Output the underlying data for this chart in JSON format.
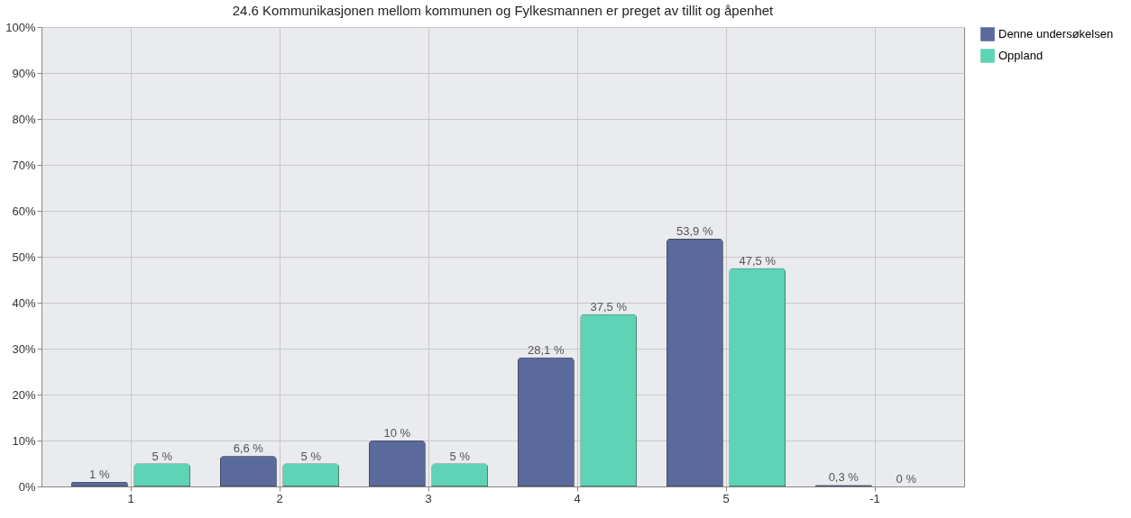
{
  "chart_data": {
    "type": "bar",
    "title": "24.6 Kommunikasjonen mellom kommunen og Fylkesmannen er preget av tillit og åpenhet",
    "categories": [
      "1",
      "2",
      "3",
      "4",
      "5",
      "-1"
    ],
    "series": [
      {
        "name": "Denne undersøkelsen",
        "color": "#5b6a9c",
        "values": [
          1,
          6.6,
          10,
          28.1,
          53.9,
          0.3
        ],
        "value_labels": [
          "1 %",
          "6,6 %",
          "10 %",
          "28,1 %",
          "53,9 %",
          "0,3 %"
        ]
      },
      {
        "name": "Oppland",
        "color": "#5fd3b5",
        "values": [
          5,
          5,
          5,
          37.5,
          47.5,
          0
        ],
        "value_labels": [
          "5 %",
          "5 %",
          "5 %",
          "37,5 %",
          "47,5 %",
          "0 %"
        ]
      }
    ],
    "ylim": [
      0,
      100
    ],
    "yticks": [
      {
        "value": 0,
        "label": "0%"
      },
      {
        "value": 10,
        "label": "10%"
      },
      {
        "value": 20,
        "label": "20%"
      },
      {
        "value": 30,
        "label": "30%"
      },
      {
        "value": 40,
        "label": "40%"
      },
      {
        "value": 50,
        "label": "50%"
      },
      {
        "value": 60,
        "label": "60%"
      },
      {
        "value": 70,
        "label": "70%"
      },
      {
        "value": 80,
        "label": "80%"
      },
      {
        "value": 90,
        "label": "90%"
      },
      {
        "value": 100,
        "label": "100%"
      }
    ],
    "grid": true,
    "legend": "top right"
  }
}
